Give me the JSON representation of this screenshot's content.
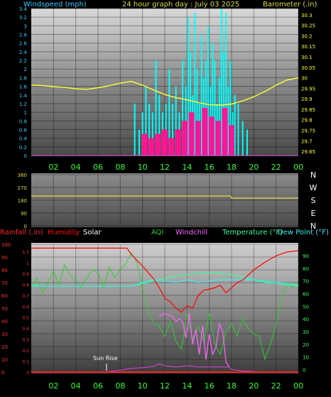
{
  "header": {
    "windspeed_label": "Windspeed (mph)",
    "title": "24 hour graph day : July 03 2025",
    "barometer_label": "Barometer (.in)"
  },
  "legend": {
    "rainfall": "Rainfall (.in)",
    "humidity": "Humidity",
    "solar": "Solar",
    "aqi": "AQI",
    "windchill": "Windchill",
    "temperature": "Temperature (°F)",
    "dewpoint": "Dew Point (°F)"
  },
  "annotation": {
    "sunrise": "Sun Rise"
  },
  "colors": {
    "windspeed": "#33ccff",
    "barometer": "#ffff33",
    "wind_bars": "#00ffff",
    "gust_bars": "#ff1493",
    "rainfall": "#ff2020",
    "humidity": "#ff0000",
    "solar": "#dd44dd",
    "aqi": "#33cc33",
    "windchill": "#ff66ff",
    "temperature": "#33ff99",
    "dewpoint": "#33eeee",
    "hour_labels": "#33ff33"
  },
  "chart_data": [
    {
      "type": "bar",
      "name": "wind-barometer",
      "x_ticks": [
        "02",
        "04",
        "06",
        "08",
        "10",
        "12",
        "14",
        "16",
        "18",
        "20",
        "22",
        "00"
      ],
      "y_left_ticks": [
        "0",
        "0.2",
        "0.4",
        "0.6",
        "0.8",
        "1",
        "1.2",
        "1.4",
        "1.6",
        "1.8",
        "2",
        "2.2",
        "2.4",
        "2.6",
        "2.8",
        "3",
        "3.2",
        "3.4"
      ],
      "y_right_ticks": [
        "29.65",
        "29.7",
        "29.75",
        "29.8",
        "29.85",
        "29.9",
        "29.95",
        "30",
        "30.05",
        "30.1",
        "30.15",
        "30.2",
        "30.25",
        "30.3"
      ],
      "ylim_left": [
        0,
        3.4
      ],
      "ylim_right": [
        29.63,
        30.33
      ],
      "xlim": [
        0,
        24
      ],
      "barometer": {
        "x": [
          0,
          1,
          2,
          3,
          4,
          5,
          6,
          7,
          8,
          9,
          10,
          11,
          12,
          13,
          14,
          15,
          16,
          17,
          18,
          19,
          20,
          21,
          22,
          23,
          24
        ],
        "y": [
          29.965,
          29.963,
          29.958,
          29.955,
          29.948,
          29.945,
          29.953,
          29.962,
          29.975,
          29.983,
          29.965,
          29.942,
          29.92,
          29.906,
          29.895,
          29.882,
          29.872,
          29.87,
          29.875,
          29.89,
          29.91,
          29.935,
          29.965,
          29.99,
          30.0
        ]
      },
      "wind": {
        "x": [
          9.3,
          9.7,
          10.0,
          10.3,
          10.6,
          10.9,
          11.2,
          11.5,
          11.8,
          12.1,
          12.4,
          12.7,
          13.0,
          13.3,
          13.6,
          13.9,
          14.1,
          14.3,
          14.5,
          14.7,
          14.9,
          15.1,
          15.3,
          15.5,
          15.7,
          15.9,
          16.1,
          16.3,
          16.5,
          16.7,
          16.9,
          17.1,
          17.3,
          17.5,
          17.7,
          17.9,
          18.1,
          18.3,
          18.6,
          19.0,
          19.4
        ],
        "y": [
          1.2,
          0.6,
          1.0,
          1.6,
          1.2,
          1.0,
          2.2,
          1.4,
          1.0,
          1.2,
          2.0,
          1.2,
          1.6,
          1.0,
          2.2,
          1.6,
          3.2,
          2.4,
          1.4,
          3.3,
          2.0,
          1.2,
          2.8,
          1.8,
          2.2,
          3.0,
          1.6,
          2.6,
          2.2,
          1.2,
          1.8,
          3.4,
          2.4,
          3.3,
          1.6,
          2.2,
          1.0,
          1.4,
          1.2,
          0.8,
          0.6
        ]
      },
      "gust": {
        "x": [
          10.2,
          10.8,
          11.4,
          12.0,
          12.6,
          13.2,
          13.8,
          14.4,
          15.0,
          15.6,
          16.2,
          16.8,
          17.4,
          18.0
        ],
        "y": [
          0.5,
          0.4,
          0.5,
          0.6,
          0.4,
          0.6,
          0.8,
          1.0,
          0.8,
          1.1,
          0.9,
          0.8,
          1.1,
          0.7
        ]
      }
    },
    {
      "type": "line",
      "name": "wind-direction",
      "y_ticks": [
        "360",
        "270",
        "180",
        "90",
        "0"
      ],
      "y_right_labels": [
        "N",
        "W",
        "S",
        "E",
        "N"
      ],
      "ylim": [
        0,
        360
      ],
      "xlim": [
        0,
        24
      ],
      "direction": {
        "x": [
          0,
          6,
          12,
          17.9,
          18.0,
          24
        ],
        "y": [
          210,
          210,
          210,
          210,
          195,
          195
        ]
      }
    },
    {
      "type": "line",
      "name": "weather",
      "x_ticks": [
        "02",
        "04",
        "06",
        "08",
        "10",
        "12",
        "14",
        "16",
        "18",
        "20",
        "22",
        "00"
      ],
      "y_left_ticks": [
        "0",
        "10",
        "20",
        "30",
        "40",
        "50",
        "60",
        "70",
        "80",
        "90",
        "100"
      ],
      "y_rain_ticks": [
        "0",
        "0.1",
        "0.2",
        "0.3",
        "0.4",
        "0.5",
        "0.6",
        "0.7",
        "0.8",
        "0.9",
        "1",
        "1.1"
      ],
      "y_right_ticks": [
        "0",
        "10",
        "20",
        "30",
        "40",
        "50",
        "60",
        "70",
        "80",
        "90"
      ],
      "ylim_pct": [
        0,
        100
      ],
      "ylim_temp": [
        -2,
        99
      ],
      "xlim": [
        0,
        24
      ],
      "humidity": {
        "x": [
          0,
          1,
          2,
          3,
          4,
          5,
          6,
          7,
          8,
          8.6,
          9,
          10,
          11,
          11.5,
          12,
          12.5,
          13,
          13.5,
          14,
          14.5,
          15,
          15.5,
          16,
          16.5,
          17,
          17.5,
          18,
          18.5,
          19,
          19.5,
          20,
          21,
          22,
          23,
          24
        ],
        "y": [
          97,
          97,
          97,
          97,
          97,
          97,
          97,
          97,
          97,
          97,
          92,
          83,
          73,
          66,
          58,
          55,
          50,
          47,
          52,
          50,
          60,
          64,
          65,
          66,
          68,
          62,
          66,
          70,
          72,
          76,
          80,
          86,
          91,
          94,
          95
        ]
      },
      "temperature": {
        "x": [
          0,
          1,
          2,
          3,
          4,
          5,
          6,
          7,
          8,
          9,
          10,
          11,
          12,
          13,
          14,
          15,
          16,
          17,
          18,
          19,
          20,
          21,
          22,
          23,
          24
        ],
        "y": [
          67,
          66,
          66,
          66,
          66,
          66,
          66,
          66,
          66,
          66,
          68,
          70,
          72,
          74,
          75,
          76,
          76,
          76,
          75,
          73,
          71,
          69,
          68,
          67,
          66
        ]
      },
      "dewpoint": {
        "x": [
          0,
          1,
          2,
          3,
          4,
          5,
          6,
          7,
          8,
          9,
          10,
          11,
          12,
          13,
          14,
          15,
          16,
          17,
          18,
          19,
          20,
          21,
          22,
          23,
          24
        ],
        "y": [
          66,
          66,
          66,
          66,
          66,
          66,
          66,
          66,
          66,
          66,
          69,
          71,
          70,
          69,
          71,
          69,
          70,
          71,
          71,
          71,
          71,
          70,
          69,
          68,
          67
        ]
      },
      "aqi": {
        "x": [
          0,
          0.5,
          1,
          1.5,
          2,
          2.5,
          3,
          3.5,
          4,
          4.5,
          5,
          5.5,
          6,
          6.5,
          7,
          7.5,
          8,
          8.5,
          9,
          9.5,
          10,
          10.5,
          11,
          11.5,
          12,
          12.5,
          13,
          13.5,
          14,
          14.5,
          15,
          15.5,
          16,
          16.5,
          17,
          17.5,
          18,
          18.5,
          19,
          19.5,
          20,
          20.5,
          21,
          21.5,
          22,
          22.5,
          23,
          23.5,
          24
        ],
        "y": [
          66,
          74,
          62,
          70,
          79,
          68,
          84,
          76,
          72,
          66,
          74,
          80,
          78,
          66,
          82,
          74,
          80,
          85,
          93,
          86,
          65,
          48,
          38,
          36,
          28,
          40,
          24,
          18,
          46,
          26,
          36,
          24,
          46,
          22,
          14,
          32,
          38,
          28,
          42,
          34,
          30,
          28,
          10,
          22,
          38,
          58,
          70,
          66,
          72
        ]
      },
      "windchill": {
        "x": [
          11.5,
          11.8,
          12.1,
          12.4,
          12.7,
          13.0,
          13.3,
          13.6,
          13.9,
          14.2,
          14.5,
          14.8,
          15.1,
          15.4,
          15.7,
          16.0,
          16.3,
          16.6,
          16.9,
          17.2,
          17.5,
          17.8
        ],
        "y": [
          42,
          44,
          44,
          43,
          42,
          38,
          40,
          38,
          25,
          45,
          20,
          32,
          12,
          35,
          8,
          28,
          12,
          18,
          36,
          30,
          6,
          2
        ]
      },
      "solar": {
        "x": [
          0,
          6,
          7,
          8,
          9,
          10,
          11,
          11.5,
          12,
          13,
          14,
          15,
          16,
          17,
          17.8,
          18,
          19,
          20,
          21,
          22,
          23,
          24
        ],
        "y": [
          0,
          0,
          0.5,
          1.5,
          3,
          3.5,
          4.5,
          6.5,
          5,
          4,
          5,
          4,
          4,
          4,
          4,
          2,
          1,
          0.5,
          0,
          0,
          0,
          0
        ]
      },
      "rainfall": {
        "x": [
          0,
          24
        ],
        "y": [
          0,
          0
        ]
      }
    }
  ]
}
